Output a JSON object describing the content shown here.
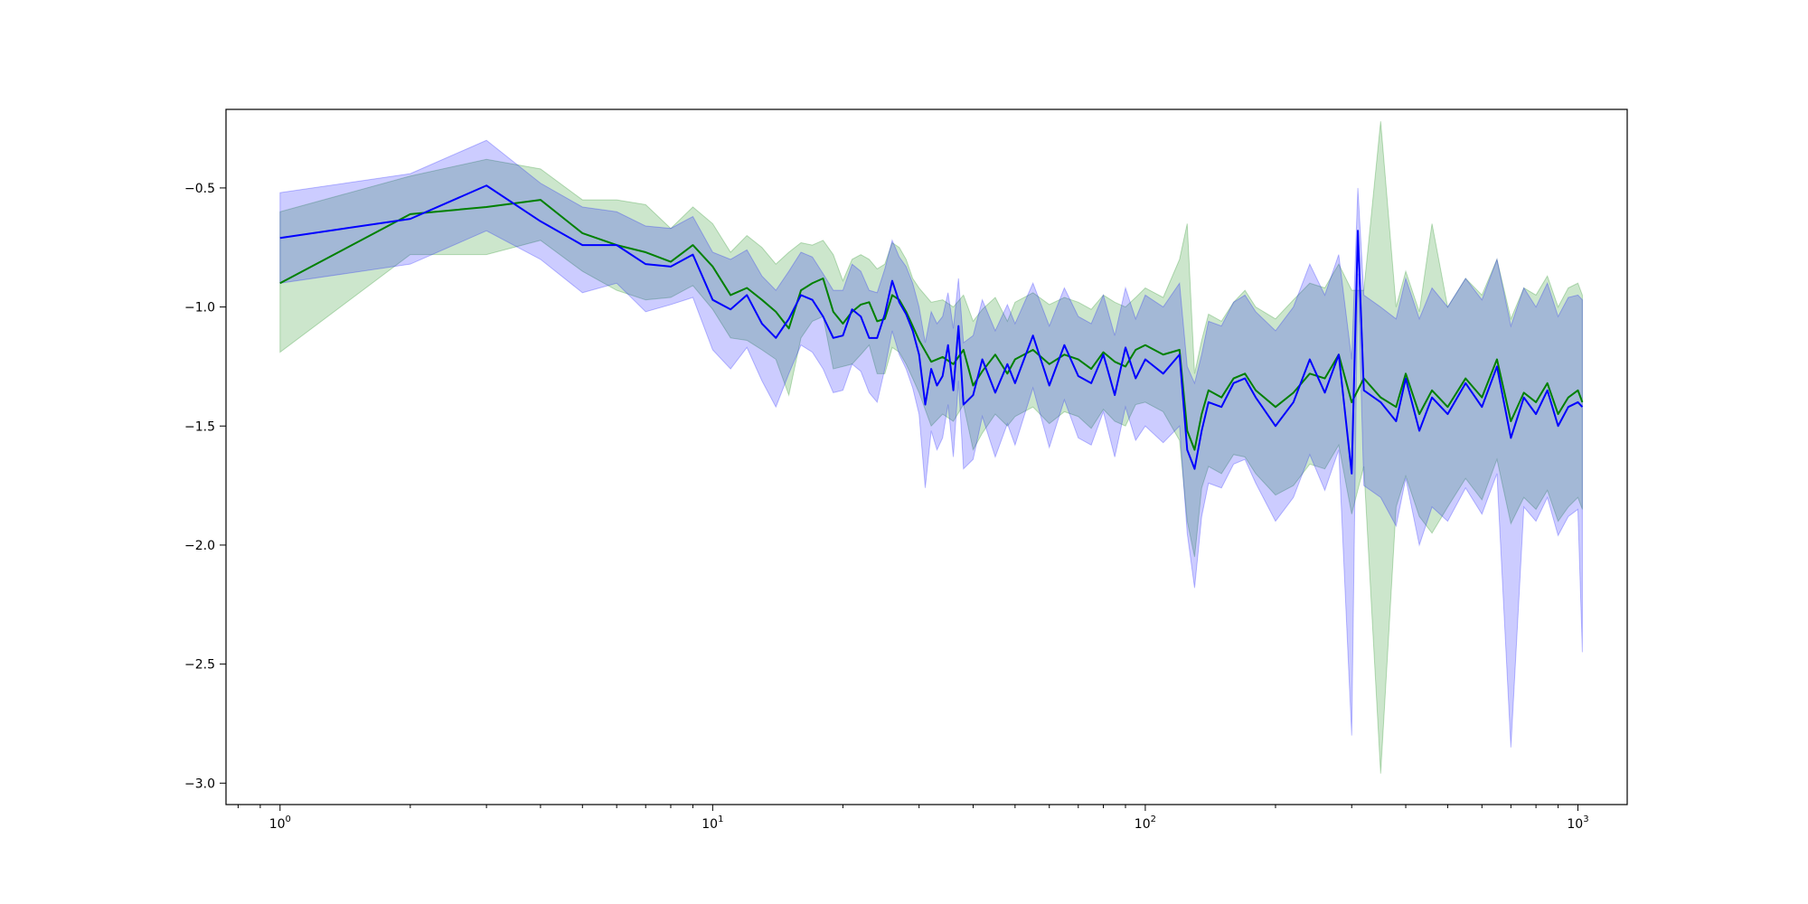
{
  "chart_data": {
    "type": "line",
    "title": "",
    "xlabel": "",
    "ylabel": "",
    "x_scale": "log",
    "xlim": [
      0.75,
      1300
    ],
    "ylim": [
      -3.09,
      -0.17
    ],
    "grid": false,
    "legend": "none",
    "x_ticks": [
      {
        "base": "10",
        "exp": "0",
        "value": 1
      },
      {
        "base": "10",
        "exp": "1",
        "value": 10
      },
      {
        "base": "10",
        "exp": "2",
        "value": 100
      },
      {
        "base": "10",
        "exp": "3",
        "value": 1000
      }
    ],
    "y_ticks": [
      {
        "label": "−0.5",
        "value": -0.5
      },
      {
        "label": "−1.0",
        "value": -1.0
      },
      {
        "label": "−1.5",
        "value": -1.5
      },
      {
        "label": "−2.0",
        "value": -2.0
      },
      {
        "label": "−2.5",
        "value": -2.5
      },
      {
        "label": "−3.0",
        "value": -3.0
      }
    ],
    "series": [
      {
        "color": "#008000",
        "band_color": "#008000",
        "x": [
          1,
          2,
          3,
          4,
          5,
          6,
          7,
          8,
          9,
          10,
          11,
          12,
          13,
          14,
          15,
          16,
          17,
          18,
          19,
          20,
          21,
          22,
          23,
          24,
          25,
          26,
          27,
          28,
          29,
          30,
          32,
          34,
          36,
          38,
          40,
          42,
          45,
          48,
          50,
          55,
          60,
          65,
          70,
          75,
          80,
          85,
          90,
          95,
          100,
          110,
          120,
          125,
          130,
          135,
          140,
          150,
          160,
          170,
          180,
          200,
          220,
          240,
          260,
          280,
          300,
          320,
          350,
          380,
          400,
          430,
          460,
          500,
          550,
          600,
          650,
          700,
          750,
          800,
          850,
          900,
          950,
          1000,
          1024
        ],
        "mean": [
          -0.9,
          -0.61,
          -0.58,
          -0.55,
          -0.69,
          -0.74,
          -0.77,
          -0.81,
          -0.74,
          -0.83,
          -0.95,
          -0.92,
          -0.97,
          -1.02,
          -1.09,
          -0.93,
          -0.9,
          -0.88,
          -1.02,
          -1.07,
          -1.02,
          -0.99,
          -0.98,
          -1.06,
          -1.05,
          -0.95,
          -0.97,
          -1.02,
          -1.08,
          -1.14,
          -1.23,
          -1.21,
          -1.24,
          -1.18,
          -1.33,
          -1.27,
          -1.2,
          -1.28,
          -1.22,
          -1.18,
          -1.24,
          -1.2,
          -1.22,
          -1.26,
          -1.19,
          -1.23,
          -1.25,
          -1.18,
          -1.16,
          -1.2,
          -1.18,
          -1.52,
          -1.6,
          -1.45,
          -1.35,
          -1.38,
          -1.3,
          -1.28,
          -1.35,
          -1.42,
          -1.36,
          -1.28,
          -1.3,
          -1.2,
          -1.4,
          -1.3,
          -1.38,
          -1.42,
          -1.28,
          -1.45,
          -1.35,
          -1.42,
          -1.3,
          -1.38,
          -1.22,
          -1.48,
          -1.36,
          -1.4,
          -1.32,
          -1.45,
          -1.38,
          -1.35,
          -1.4
        ],
        "upper": [
          -0.6,
          -0.45,
          -0.38,
          -0.42,
          -0.55,
          -0.55,
          -0.57,
          -0.67,
          -0.58,
          -0.65,
          -0.77,
          -0.7,
          -0.75,
          -0.82,
          -0.77,
          -0.73,
          -0.74,
          -0.72,
          -0.78,
          -0.89,
          -0.8,
          -0.78,
          -0.8,
          -0.84,
          -0.82,
          -0.73,
          -0.75,
          -0.8,
          -0.88,
          -0.92,
          -0.98,
          -0.97,
          -1.0,
          -0.95,
          -1.06,
          -1.01,
          -0.96,
          -1.06,
          -0.98,
          -0.94,
          -0.99,
          -0.96,
          -0.98,
          -1.01,
          -0.95,
          -0.98,
          -1.0,
          -0.96,
          -0.92,
          -0.96,
          -0.8,
          -0.65,
          -1.28,
          -1.14,
          -1.03,
          -1.06,
          -0.98,
          -0.93,
          -1.0,
          -1.05,
          -0.97,
          -0.9,
          -0.92,
          -0.82,
          -0.93,
          -0.93,
          -0.22,
          -1.0,
          -0.85,
          -1.02,
          -0.65,
          -1.0,
          -0.88,
          -0.95,
          -0.8,
          -1.05,
          -0.92,
          -0.95,
          -0.87,
          -1.0,
          -0.92,
          -0.9,
          -0.95
        ],
        "lower": [
          -1.19,
          -0.78,
          -0.78,
          -0.72,
          -0.85,
          -0.93,
          -0.97,
          -0.96,
          -0.91,
          -1.01,
          -1.13,
          -1.14,
          -1.18,
          -1.22,
          -1.37,
          -1.13,
          -1.06,
          -1.04,
          -1.26,
          -1.25,
          -1.24,
          -1.2,
          -1.16,
          -1.28,
          -1.28,
          -1.17,
          -1.19,
          -1.24,
          -1.3,
          -1.36,
          -1.5,
          -1.45,
          -1.48,
          -1.41,
          -1.6,
          -1.53,
          -1.45,
          -1.5,
          -1.46,
          -1.42,
          -1.49,
          -1.44,
          -1.46,
          -1.51,
          -1.43,
          -1.48,
          -1.5,
          -1.41,
          -1.4,
          -1.44,
          -1.56,
          -1.9,
          -2.05,
          -1.76,
          -1.67,
          -1.7,
          -1.62,
          -1.63,
          -1.7,
          -1.79,
          -1.75,
          -1.66,
          -1.68,
          -1.58,
          -1.87,
          -1.67,
          -2.96,
          -1.84,
          -1.71,
          -1.88,
          -1.95,
          -1.84,
          -1.72,
          -1.81,
          -1.64,
          -1.91,
          -1.8,
          -1.85,
          -1.77,
          -1.9,
          -1.84,
          -1.8,
          -1.85
        ]
      },
      {
        "color": "#0000ff",
        "band_color": "#0000ff",
        "x": [
          1,
          2,
          3,
          4,
          5,
          6,
          7,
          8,
          9,
          10,
          11,
          12,
          13,
          14,
          15,
          16,
          17,
          18,
          19,
          20,
          21,
          22,
          23,
          24,
          25,
          26,
          27,
          28,
          29,
          30,
          31,
          32,
          33,
          34,
          35,
          36,
          37,
          38,
          40,
          42,
          45,
          48,
          50,
          55,
          60,
          65,
          70,
          75,
          80,
          85,
          90,
          95,
          100,
          110,
          120,
          125,
          130,
          135,
          140,
          150,
          160,
          170,
          180,
          200,
          220,
          240,
          260,
          280,
          300,
          310,
          320,
          350,
          380,
          400,
          430,
          460,
          500,
          550,
          600,
          650,
          700,
          750,
          800,
          850,
          900,
          950,
          1000,
          1024
        ],
        "mean": [
          -0.71,
          -0.63,
          -0.49,
          -0.64,
          -0.74,
          -0.74,
          -0.82,
          -0.83,
          -0.78,
          -0.97,
          -1.01,
          -0.95,
          -1.07,
          -1.13,
          -1.05,
          -0.95,
          -0.97,
          -1.04,
          -1.13,
          -1.12,
          -1.01,
          -1.04,
          -1.13,
          -1.13,
          -1.03,
          -0.89,
          -0.98,
          -1.03,
          -1.1,
          -1.2,
          -1.41,
          -1.26,
          -1.33,
          -1.29,
          -1.16,
          -1.35,
          -1.08,
          -1.41,
          -1.37,
          -1.22,
          -1.36,
          -1.24,
          -1.32,
          -1.12,
          -1.33,
          -1.16,
          -1.29,
          -1.32,
          -1.2,
          -1.37,
          -1.17,
          -1.3,
          -1.22,
          -1.28,
          -1.2,
          -1.6,
          -1.68,
          -1.52,
          -1.4,
          -1.42,
          -1.32,
          -1.3,
          -1.38,
          -1.5,
          -1.4,
          -1.22,
          -1.36,
          -1.2,
          -1.7,
          -0.68,
          -1.35,
          -1.4,
          -1.48,
          -1.3,
          -1.52,
          -1.38,
          -1.45,
          -1.32,
          -1.42,
          -1.25,
          -1.55,
          -1.38,
          -1.45,
          -1.35,
          -1.5,
          -1.42,
          -1.4,
          -1.42
        ],
        "upper": [
          -0.52,
          -0.44,
          -0.3,
          -0.48,
          -0.58,
          -0.6,
          -0.66,
          -0.67,
          -0.62,
          -0.77,
          -0.8,
          -0.76,
          -0.87,
          -0.93,
          -0.85,
          -0.77,
          -0.79,
          -0.86,
          -0.93,
          -0.93,
          -0.82,
          -0.85,
          -0.93,
          -0.94,
          -0.84,
          -0.72,
          -0.79,
          -0.83,
          -0.9,
          -1.0,
          -1.15,
          -1.02,
          -1.07,
          -1.04,
          -0.94,
          -1.09,
          -0.88,
          -1.15,
          -1.12,
          -0.97,
          -1.1,
          -0.99,
          -1.07,
          -0.9,
          -1.08,
          -0.92,
          -1.04,
          -1.07,
          -0.95,
          -1.12,
          -0.92,
          -1.05,
          -0.95,
          -1.0,
          -0.9,
          -1.25,
          -1.32,
          -1.2,
          -1.06,
          -1.08,
          -0.98,
          -0.95,
          -1.02,
          -1.1,
          -1.0,
          -0.82,
          -0.95,
          -0.78,
          -1.22,
          -0.5,
          -0.95,
          -1.0,
          -1.05,
          -0.88,
          -1.05,
          -0.92,
          -1.0,
          -0.88,
          -0.97,
          -0.8,
          -1.08,
          -0.92,
          -1.0,
          -0.9,
          -1.04,
          -0.96,
          -0.95,
          -0.97
        ],
        "lower": [
          -0.9,
          -0.82,
          -0.68,
          -0.8,
          -0.94,
          -0.9,
          -1.02,
          -0.99,
          -0.96,
          -1.18,
          -1.26,
          -1.17,
          -1.31,
          -1.42,
          -1.28,
          -1.16,
          -1.19,
          -1.26,
          -1.36,
          -1.35,
          -1.24,
          -1.27,
          -1.36,
          -1.4,
          -1.26,
          -1.1,
          -1.2,
          -1.26,
          -1.34,
          -1.45,
          -1.76,
          -1.52,
          -1.6,
          -1.55,
          -1.41,
          -1.63,
          -1.31,
          -1.68,
          -1.64,
          -1.46,
          -1.63,
          -1.49,
          -1.58,
          -1.34,
          -1.59,
          -1.39,
          -1.55,
          -1.58,
          -1.44,
          -1.63,
          -1.42,
          -1.56,
          -1.5,
          -1.57,
          -1.5,
          -1.95,
          -2.18,
          -1.88,
          -1.74,
          -1.76,
          -1.66,
          -1.64,
          -1.74,
          -1.9,
          -1.8,
          -1.62,
          -1.77,
          -1.6,
          -2.8,
          -0.86,
          -1.75,
          -1.8,
          -1.92,
          -1.72,
          -2.0,
          -1.84,
          -1.9,
          -1.76,
          -1.87,
          -1.7,
          -2.85,
          -1.84,
          -1.9,
          -1.8,
          -1.96,
          -1.88,
          -1.85,
          -2.45
        ]
      }
    ]
  }
}
